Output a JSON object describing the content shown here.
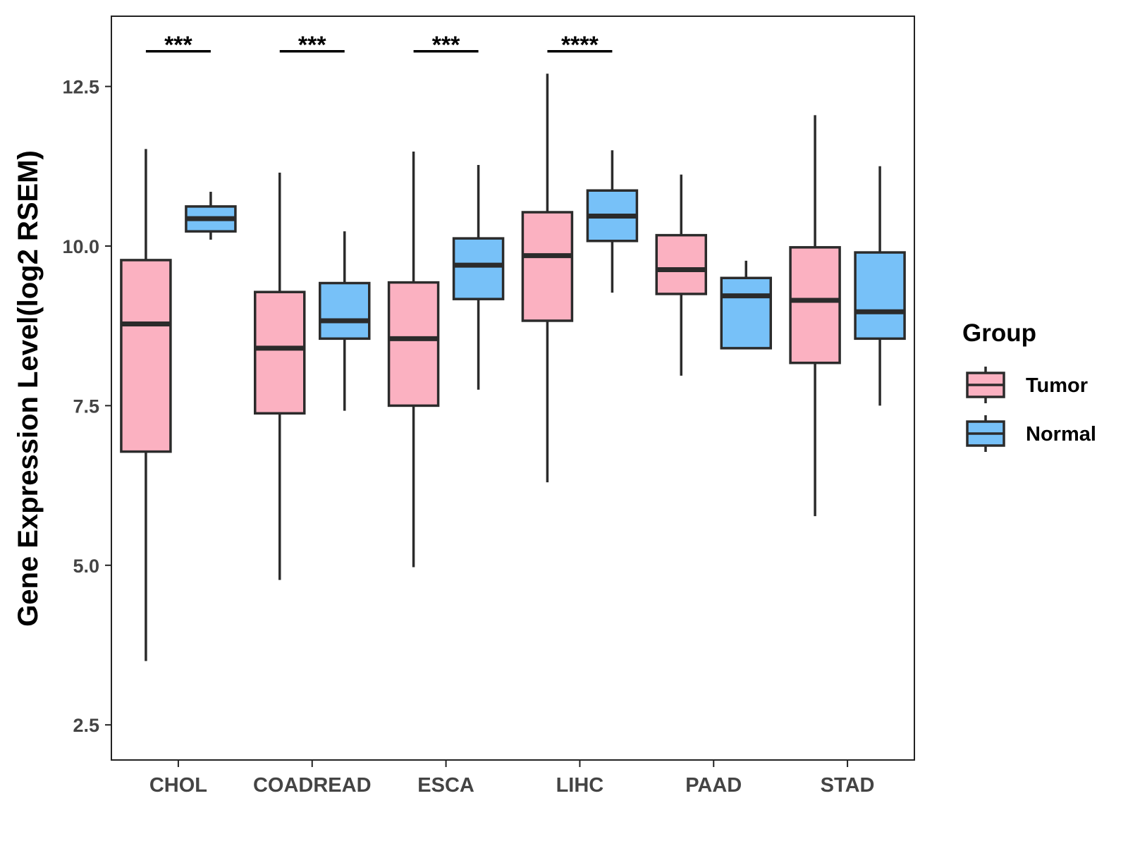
{
  "chart_data": {
    "type": "boxplot",
    "title": "",
    "xlabel": "",
    "ylabel": "Gene Expression Level(log2 RSEM)",
    "ylim": [
      1.95,
      13.6
    ],
    "yticks": [
      2.5,
      5.0,
      7.5,
      10.0,
      12.5
    ],
    "ytick_labels": [
      "2.5",
      "5.0",
      "7.5",
      "10.0",
      "12.5"
    ],
    "categories": [
      "CHOL",
      "COADREAD",
      "ESCA",
      "LIHC",
      "PAAD",
      "STAD"
    ],
    "grid": false,
    "legend": {
      "title": "Group",
      "position": "right",
      "entries": [
        {
          "name": "Tumor",
          "color": "#FBB1C1"
        },
        {
          "name": "Normal",
          "color": "#77C1F8"
        }
      ]
    },
    "series": [
      {
        "name": "Tumor",
        "color": "#FBB1C1",
        "boxes": [
          {
            "low": 3.5,
            "q1": 6.78,
            "median": 8.78,
            "q3": 9.78,
            "high": 11.52
          },
          {
            "low": 4.77,
            "q1": 7.38,
            "median": 8.4,
            "q3": 9.28,
            "high": 11.15
          },
          {
            "low": 4.97,
            "q1": 7.5,
            "median": 8.55,
            "q3": 9.43,
            "high": 11.48
          },
          {
            "low": 6.3,
            "q1": 8.83,
            "median": 9.85,
            "q3": 10.53,
            "high": 12.7
          },
          {
            "low": 7.97,
            "q1": 9.25,
            "median": 9.63,
            "q3": 10.17,
            "high": 11.12
          },
          {
            "low": 5.77,
            "q1": 8.17,
            "median": 9.15,
            "q3": 9.98,
            "high": 12.05
          }
        ]
      },
      {
        "name": "Normal",
        "color": "#77C1F8",
        "boxes": [
          {
            "low": 10.1,
            "q1": 10.23,
            "median": 10.43,
            "q3": 10.62,
            "high": 10.85
          },
          {
            "low": 7.42,
            "q1": 8.55,
            "median": 8.83,
            "q3": 9.42,
            "high": 10.23
          },
          {
            "low": 7.75,
            "q1": 9.17,
            "median": 9.7,
            "q3": 10.12,
            "high": 11.27
          },
          {
            "low": 9.27,
            "q1": 10.08,
            "median": 10.47,
            "q3": 10.87,
            "high": 11.5
          },
          {
            "low": 8.4,
            "q1": 8.4,
            "median": 9.22,
            "q3": 9.5,
            "high": 9.77
          },
          {
            "low": 7.5,
            "q1": 8.55,
            "median": 8.97,
            "q3": 9.9,
            "high": 11.25
          }
        ]
      }
    ],
    "significance": [
      {
        "category": "CHOL",
        "label": "***",
        "y": 13.05
      },
      {
        "category": "COADREAD",
        "label": "***",
        "y": 13.05
      },
      {
        "category": "ESCA",
        "label": "***",
        "y": 13.05
      },
      {
        "category": "LIHC",
        "label": "****",
        "y": 13.05
      }
    ]
  }
}
